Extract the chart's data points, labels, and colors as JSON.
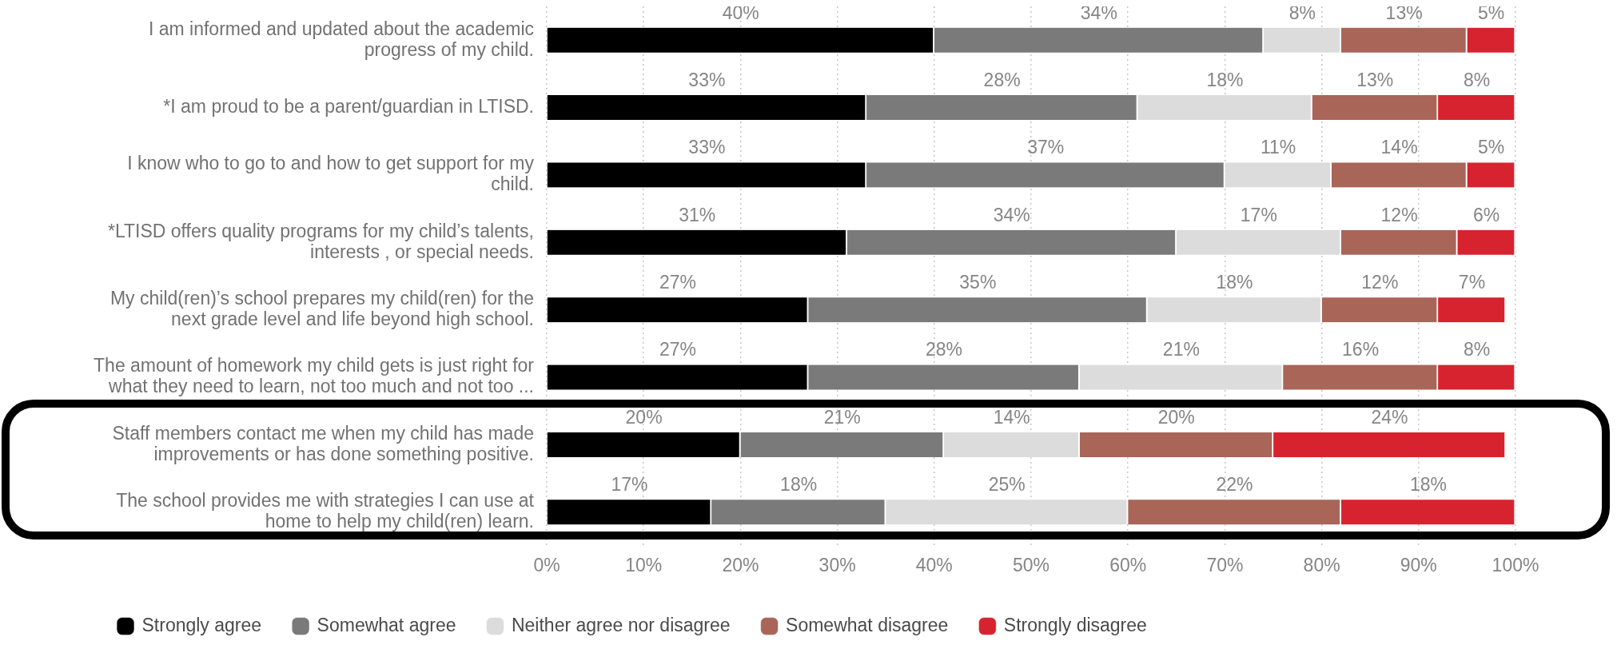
{
  "chart_data": {
    "type": "bar",
    "orientation": "horizontal",
    "stacked": true,
    "categories": [
      "I am informed and updated about the academic progress of my child.",
      "*I am proud to be a parent/guardian in LTISD.",
      "I know who to go to and how to get support for my child.",
      "*LTISD offers quality programs for my child’s talents, interests , or special needs.",
      "My child(ren)’s school prepares my child(ren) for the next grade level and life beyond high school.",
      "The amount of homework my child gets is just right for what they need to learn, not too much and not too ...",
      "Staff members contact me when my child has made improvements or has done something positive.",
      "The school provides me with strategies I can use at home to help my child(ren) learn."
    ],
    "series": [
      {
        "name": "Strongly agree",
        "color": "#000000",
        "values": [
          40,
          33,
          33,
          31,
          27,
          27,
          20,
          17
        ],
        "value_labels": [
          "40%",
          "33%",
          "33%",
          "31%",
          "27%",
          "27%",
          "20%",
          "17%"
        ]
      },
      {
        "name": "Somewhat agree",
        "color": "#7a7a7a",
        "values": [
          34,
          28,
          37,
          34,
          35,
          28,
          21,
          18
        ],
        "value_labels": [
          "34%",
          "28%",
          "37%",
          "34%",
          "35%",
          "28%",
          "21%",
          "18%"
        ]
      },
      {
        "name": "Neither agree nor disagree",
        "color": "#dcdcdc",
        "values": [
          8,
          18,
          11,
          17,
          18,
          21,
          14,
          25
        ],
        "value_labels": [
          "8%",
          "18%",
          "11%",
          "17%",
          "18%",
          "21%",
          "14%",
          "25%"
        ]
      },
      {
        "name": "Somewhat disagree",
        "color": "#a86558",
        "values": [
          13,
          13,
          14,
          12,
          12,
          16,
          20,
          22
        ],
        "value_labels": [
          "13%",
          "13%",
          "14%",
          "12%",
          "12%",
          "16%",
          "20%",
          "22%"
        ]
      },
      {
        "name": "Strongly disagree",
        "color": "#d7232f",
        "values": [
          5,
          8,
          5,
          6,
          7,
          8,
          24,
          18
        ],
        "value_labels": [
          "5%",
          "8%",
          "5%",
          "6%",
          "7%",
          "8%",
          "24%",
          "18%"
        ]
      }
    ],
    "xlim": [
      0,
      100
    ],
    "xticks": [
      {
        "value": 0,
        "label": "0%"
      },
      {
        "value": 10,
        "label": "10%"
      },
      {
        "value": 20,
        "label": "20%"
      },
      {
        "value": 30,
        "label": "30%"
      },
      {
        "value": 40,
        "label": "40%"
      },
      {
        "value": 50,
        "label": "50%"
      },
      {
        "value": 60,
        "label": "60%"
      },
      {
        "value": 70,
        "label": "70%"
      },
      {
        "value": 80,
        "label": "80%"
      },
      {
        "value": 90,
        "label": "90%"
      },
      {
        "value": 100,
        "label": "100%"
      }
    ],
    "grid": "x",
    "legend": "bottom left"
  }
}
